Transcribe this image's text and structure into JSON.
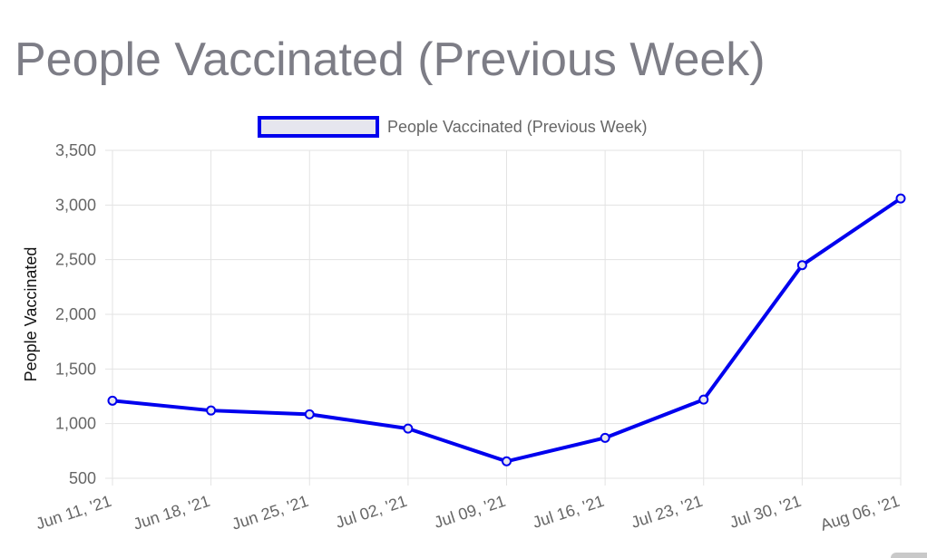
{
  "title": "People Vaccinated (Previous Week)",
  "chart_data": {
    "type": "line",
    "title": "People Vaccinated (Previous Week)",
    "xlabel": "",
    "ylabel": "People Vaccinated",
    "categories": [
      "Jun 11, '21",
      "Jun 18, '21",
      "Jun 25, '21",
      "Jul 02, '21",
      "Jul 09, '21",
      "Jul 16, '21",
      "Jul 23, '21",
      "Jul 30, '21",
      "Aug 06, '21"
    ],
    "yticks": [
      500,
      1000,
      1500,
      2000,
      2500,
      3000,
      3500
    ],
    "ytick_labels": [
      "500",
      "1,000",
      "1,500",
      "2,000",
      "2,500",
      "3,000",
      "3,500"
    ],
    "ylim": [
      500,
      3500
    ],
    "grid": true,
    "legend_position": "top",
    "series": [
      {
        "name": "People Vaccinated (Previous Week)",
        "values": [
          1210,
          1120,
          1085,
          955,
          655,
          870,
          1220,
          2450,
          3060
        ],
        "color": "#0000ee",
        "legend_fill": "#e6e6ee"
      }
    ]
  }
}
